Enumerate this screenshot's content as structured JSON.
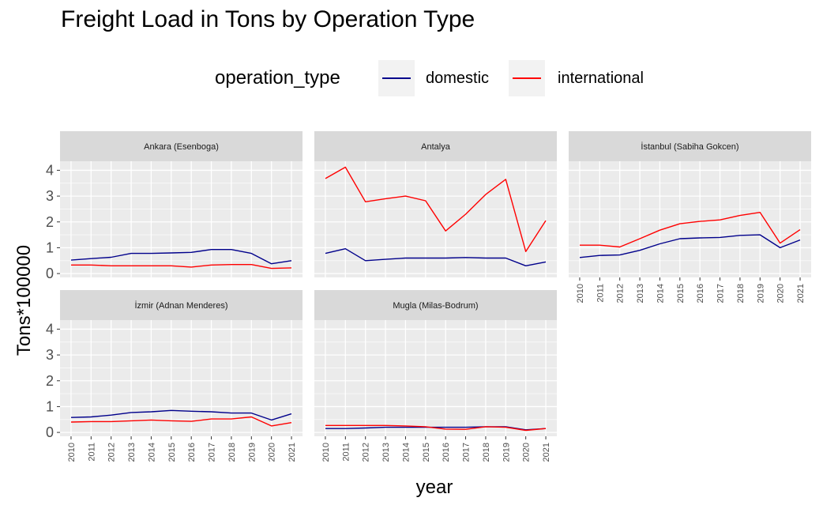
{
  "title": "Freight Load in Tons by Operation Type",
  "legend": {
    "title": "operation_type",
    "items": [
      {
        "label": "domestic",
        "color": "#00008b"
      },
      {
        "label": "international",
        "color": "#ff0000"
      }
    ]
  },
  "chart_data": {
    "type": "line",
    "title": "Freight Load in Tons by Operation Type",
    "xlabel": "year",
    "ylabel": "Tons*100000",
    "x": [
      2010,
      2011,
      2012,
      2013,
      2014,
      2015,
      2016,
      2017,
      2018,
      2019,
      2020,
      2021
    ],
    "ylim": [
      -0.15,
      4.35
    ],
    "yticks": [
      0,
      1,
      2,
      3,
      4
    ],
    "grid": true,
    "legend_position": "top",
    "facets": [
      {
        "label": "Ankara (Esenboga)",
        "series": [
          {
            "name": "domestic",
            "color": "#00008b",
            "values": [
              0.52,
              0.58,
              0.63,
              0.78,
              0.78,
              0.8,
              0.82,
              0.93,
              0.93,
              0.78,
              0.38,
              0.5
            ]
          },
          {
            "name": "international",
            "color": "#ff0000",
            "values": [
              0.33,
              0.33,
              0.3,
              0.3,
              0.3,
              0.3,
              0.25,
              0.33,
              0.35,
              0.35,
              0.2,
              0.22
            ]
          }
        ]
      },
      {
        "label": "Antalya",
        "series": [
          {
            "name": "domestic",
            "color": "#00008b",
            "values": [
              0.78,
              0.96,
              0.5,
              0.55,
              0.6,
              0.6,
              0.6,
              0.62,
              0.6,
              0.6,
              0.3,
              0.45
            ]
          },
          {
            "name": "international",
            "color": "#ff0000",
            "values": [
              3.68,
              4.12,
              2.78,
              2.9,
              3.0,
              2.82,
              1.65,
              2.3,
              3.06,
              3.65,
              0.85,
              2.05
            ]
          }
        ]
      },
      {
        "label": "İstanbul (Sabiha Gokcen)",
        "series": [
          {
            "name": "domestic",
            "color": "#00008b",
            "values": [
              0.62,
              0.7,
              0.72,
              0.9,
              1.15,
              1.35,
              1.38,
              1.4,
              1.48,
              1.5,
              1.0,
              1.3
            ]
          },
          {
            "name": "international",
            "color": "#ff0000",
            "values": [
              1.1,
              1.1,
              1.03,
              1.35,
              1.68,
              1.93,
              2.02,
              2.08,
              2.25,
              2.37,
              1.18,
              1.7
            ]
          }
        ]
      },
      {
        "label": "İzmir (Adnan Menderes)",
        "series": [
          {
            "name": "domestic",
            "color": "#00008b",
            "values": [
              0.58,
              0.6,
              0.67,
              0.77,
              0.8,
              0.85,
              0.82,
              0.8,
              0.75,
              0.75,
              0.48,
              0.72
            ]
          },
          {
            "name": "international",
            "color": "#ff0000",
            "values": [
              0.4,
              0.42,
              0.42,
              0.45,
              0.48,
              0.45,
              0.43,
              0.52,
              0.52,
              0.6,
              0.25,
              0.38
            ]
          }
        ]
      },
      {
        "label": "Mugla (Milas-Bodrum)",
        "series": [
          {
            "name": "domestic",
            "color": "#00008b",
            "values": [
              0.15,
              0.15,
              0.17,
              0.2,
              0.2,
              0.2,
              0.2,
              0.2,
              0.22,
              0.22,
              0.1,
              0.15
            ]
          },
          {
            "name": "international",
            "color": "#ff0000",
            "values": [
              0.27,
              0.27,
              0.27,
              0.27,
              0.25,
              0.22,
              0.13,
              0.12,
              0.22,
              0.2,
              0.08,
              0.15
            ]
          }
        ]
      }
    ]
  }
}
